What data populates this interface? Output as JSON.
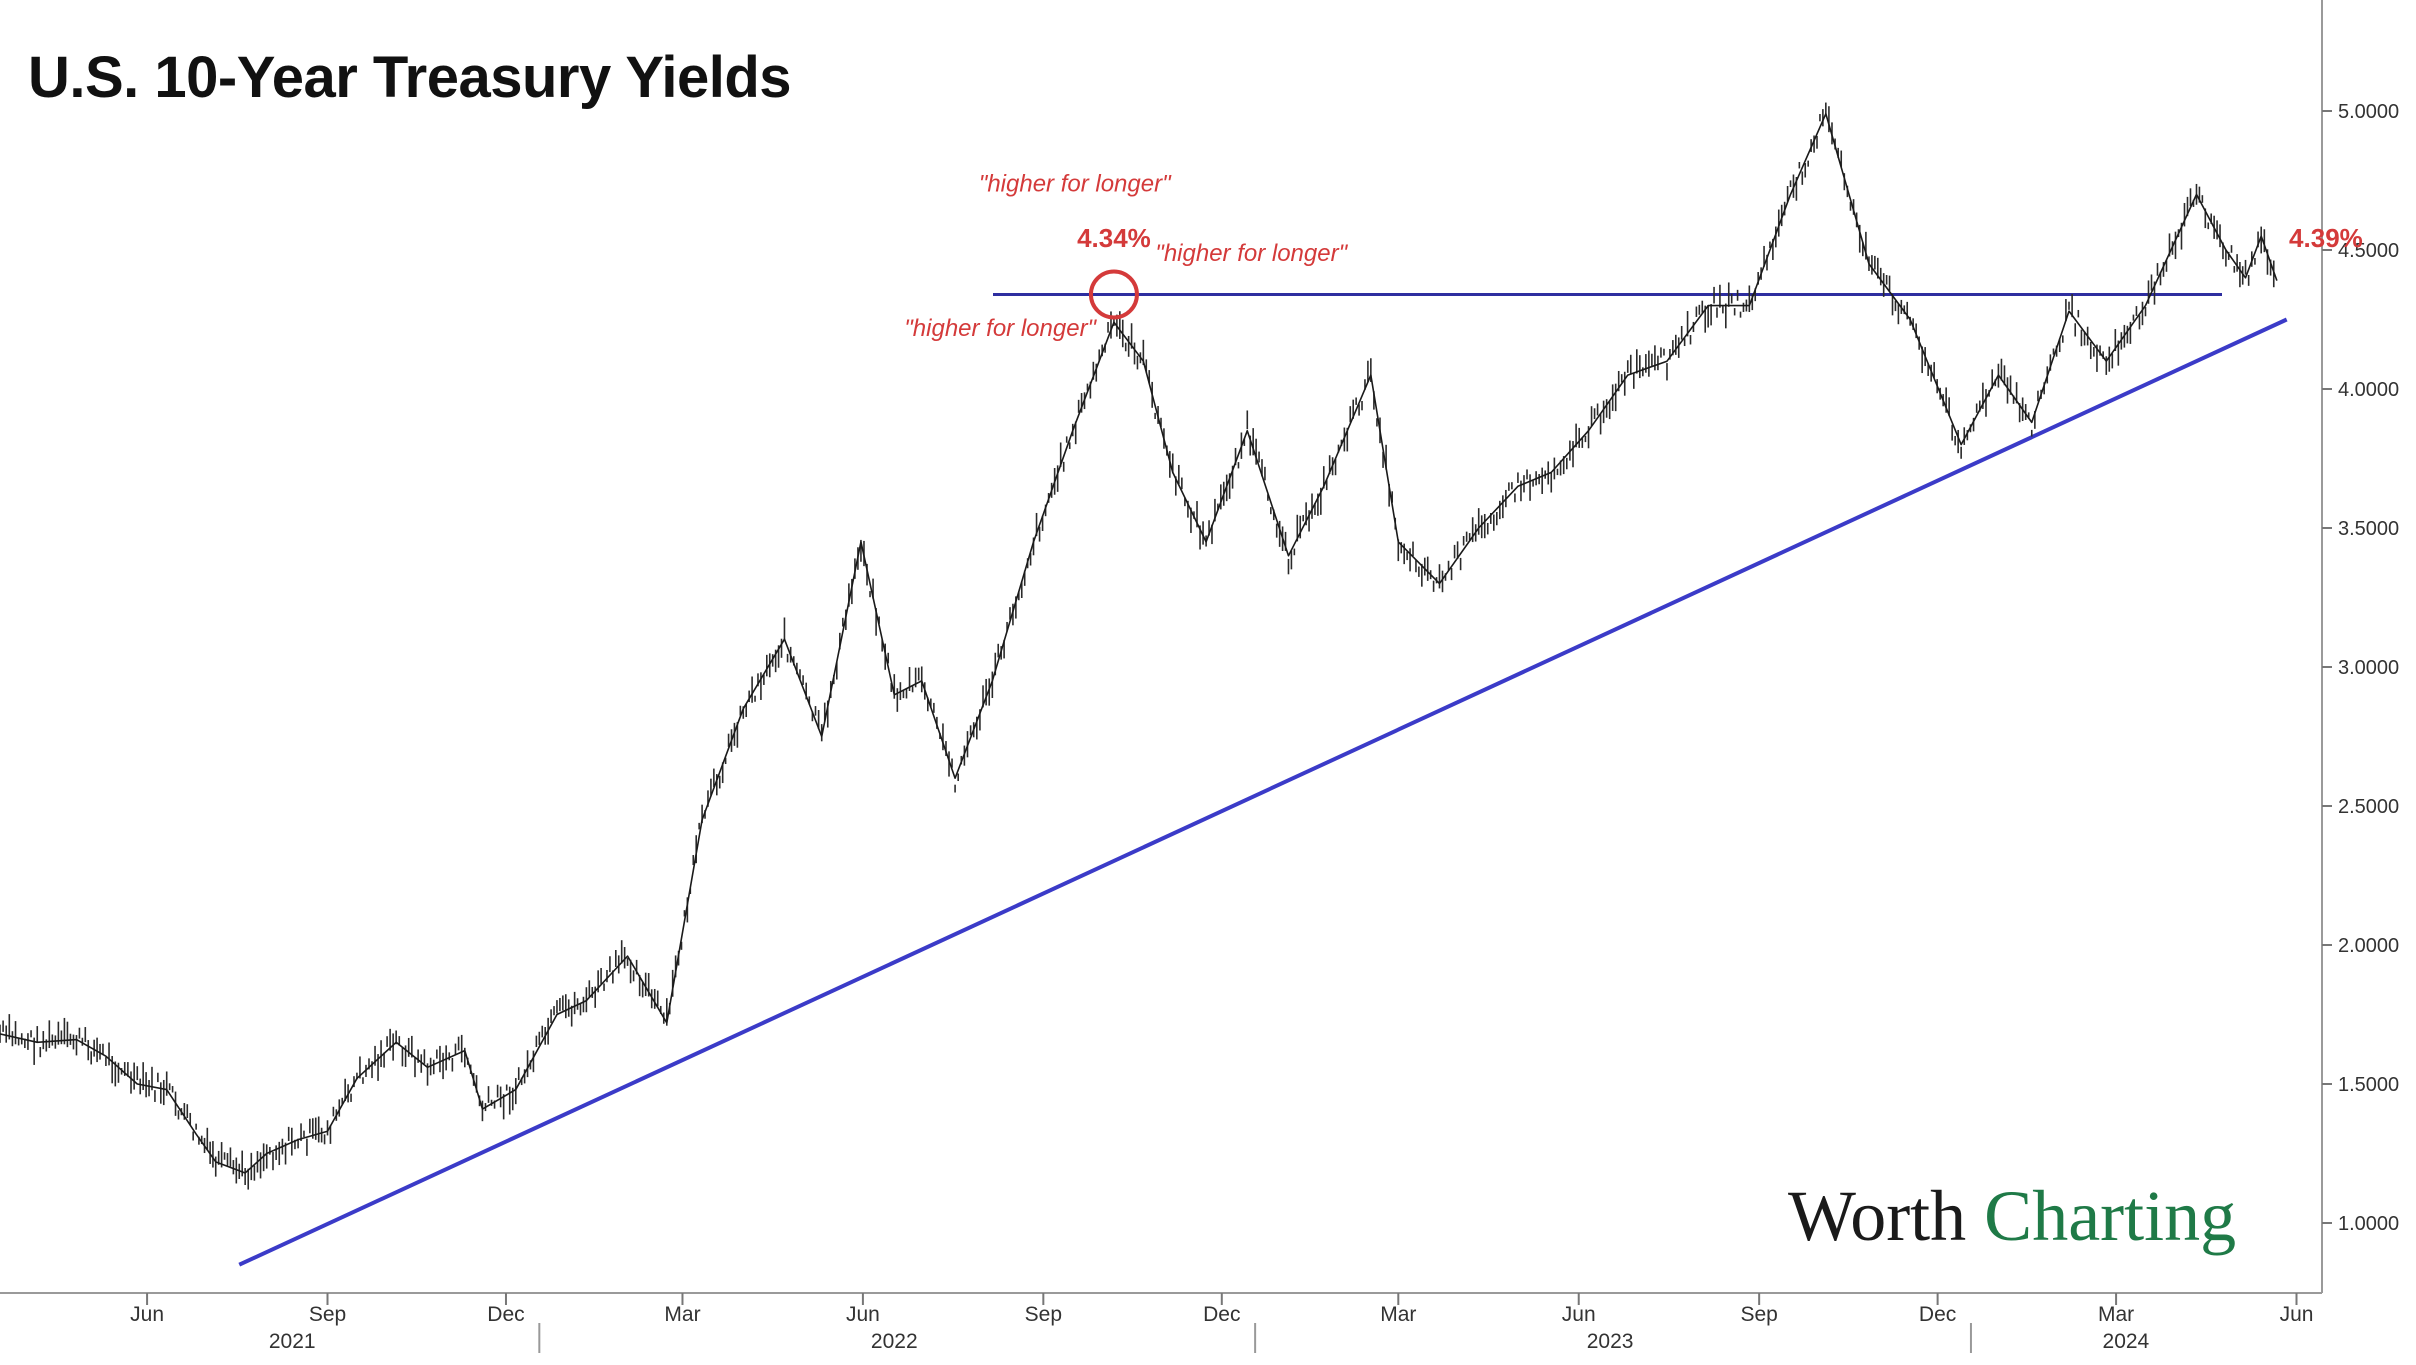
{
  "chart_data": {
    "type": "line",
    "title": "U.S. 10-Year Treasury Yields",
    "xlabel": "",
    "ylabel": "",
    "ylim": [
      0.8,
      5.3
    ],
    "y_ticks": [
      "1.0000",
      "1.5000",
      "2.0000",
      "2.5000",
      "3.0000",
      "3.5000",
      "4.0000",
      "4.5000",
      "5.0000"
    ],
    "x_month_ticks": [
      "Jun",
      "Sep",
      "Dec",
      "Mar",
      "Jun",
      "Sep",
      "Dec",
      "Mar",
      "Jun",
      "Sep",
      "Dec",
      "Mar",
      "Jun"
    ],
    "x_year_labels": [
      "2021",
      "2022",
      "2023",
      "2024"
    ],
    "series": [
      {
        "x": [
          "2021-04-01",
          "2021-04-20",
          "2021-05-10",
          "2021-05-25",
          "2021-06-10",
          "2021-06-25",
          "2021-07-10",
          "2021-07-20",
          "2021-08-04",
          "2021-08-15",
          "2021-08-31",
          "2021-09-15",
          "2021-09-30",
          "2021-10-20",
          "2021-11-05",
          "2021-11-24",
          "2021-12-03",
          "2021-12-20",
          "2022-01-10",
          "2022-01-25",
          "2022-02-15",
          "2022-03-07",
          "2022-03-25",
          "2022-04-15",
          "2022-05-06",
          "2022-05-25",
          "2022-06-14",
          "2022-07-01",
          "2022-07-15",
          "2022-08-01",
          "2022-08-20",
          "2022-09-10",
          "2022-09-30",
          "2022-10-21",
          "2022-11-05",
          "2022-11-20",
          "2022-12-07",
          "2022-12-28",
          "2023-01-18",
          "2023-02-05",
          "2023-03-01",
          "2023-03-15",
          "2023-04-05",
          "2023-04-25",
          "2023-05-15",
          "2023-06-01",
          "2023-06-20",
          "2023-07-10",
          "2023-07-30",
          "2023-08-20",
          "2023-09-10",
          "2023-10-01",
          "2023-10-19",
          "2023-11-10",
          "2023-12-01",
          "2023-12-27",
          "2024-01-15",
          "2024-02-01",
          "2024-02-20",
          "2024-03-10",
          "2024-03-30",
          "2024-04-25",
          "2024-05-10",
          "2024-05-20",
          "2024-05-28",
          "2024-06-05"
        ],
        "values": [
          1.68,
          1.65,
          1.66,
          1.6,
          1.5,
          1.48,
          1.32,
          1.22,
          1.18,
          1.25,
          1.3,
          1.33,
          1.52,
          1.65,
          1.56,
          1.62,
          1.41,
          1.48,
          1.75,
          1.8,
          1.96,
          1.72,
          2.45,
          2.85,
          3.1,
          2.75,
          3.45,
          2.9,
          2.95,
          2.6,
          2.95,
          3.45,
          3.85,
          4.24,
          4.1,
          3.7,
          3.45,
          3.85,
          3.4,
          3.65,
          4.05,
          3.45,
          3.3,
          3.5,
          3.65,
          3.7,
          3.85,
          4.05,
          4.1,
          4.3,
          4.3,
          4.7,
          4.99,
          4.45,
          4.25,
          3.8,
          4.05,
          3.88,
          4.28,
          4.1,
          4.3,
          4.7,
          4.5,
          4.4,
          4.55,
          4.39
        ]
      }
    ],
    "reference_lines": [
      {
        "type": "horizontal",
        "y": 4.34,
        "color": "#2e2ea0"
      },
      {
        "type": "trendline",
        "x_start": "2021-08-01",
        "y_start": 0.85,
        "x_end": "2024-06-10",
        "y_end": 4.25,
        "color": "#3b3bc8"
      }
    ],
    "annotations": [
      {
        "text": "\"higher for longer\"",
        "x": "2022-10-01",
        "y": 4.71,
        "color": "#d43a3a"
      },
      {
        "text": "\"higher for longer\"",
        "x": "2022-12-30",
        "y": 4.46,
        "color": "#d43a3a"
      },
      {
        "text": "\"higher for longer\"",
        "x": "2022-08-24",
        "y": 4.19,
        "color": "#d43a3a"
      },
      {
        "text": "4.34%",
        "x": "2022-10-21",
        "y": 4.51,
        "color": "#d43a3a",
        "bold": true
      },
      {
        "text": "4.39%",
        "x": "2024-06-30",
        "y": 4.51,
        "color": "#d43a3a",
        "bold": true
      }
    ],
    "highlight_circle": {
      "x": "2022-10-21",
      "y": 4.34,
      "color": "#d43a3a"
    },
    "grid": false,
    "legend": "none"
  },
  "logo": {
    "part1": "Worth",
    "part2": "Charting"
  },
  "colors": {
    "line": "#1a1a1a",
    "resistance": "#2e2ea0",
    "trend": "#3b3bc8",
    "annotation": "#d43a3a",
    "logo_green": "#1f7a47"
  }
}
